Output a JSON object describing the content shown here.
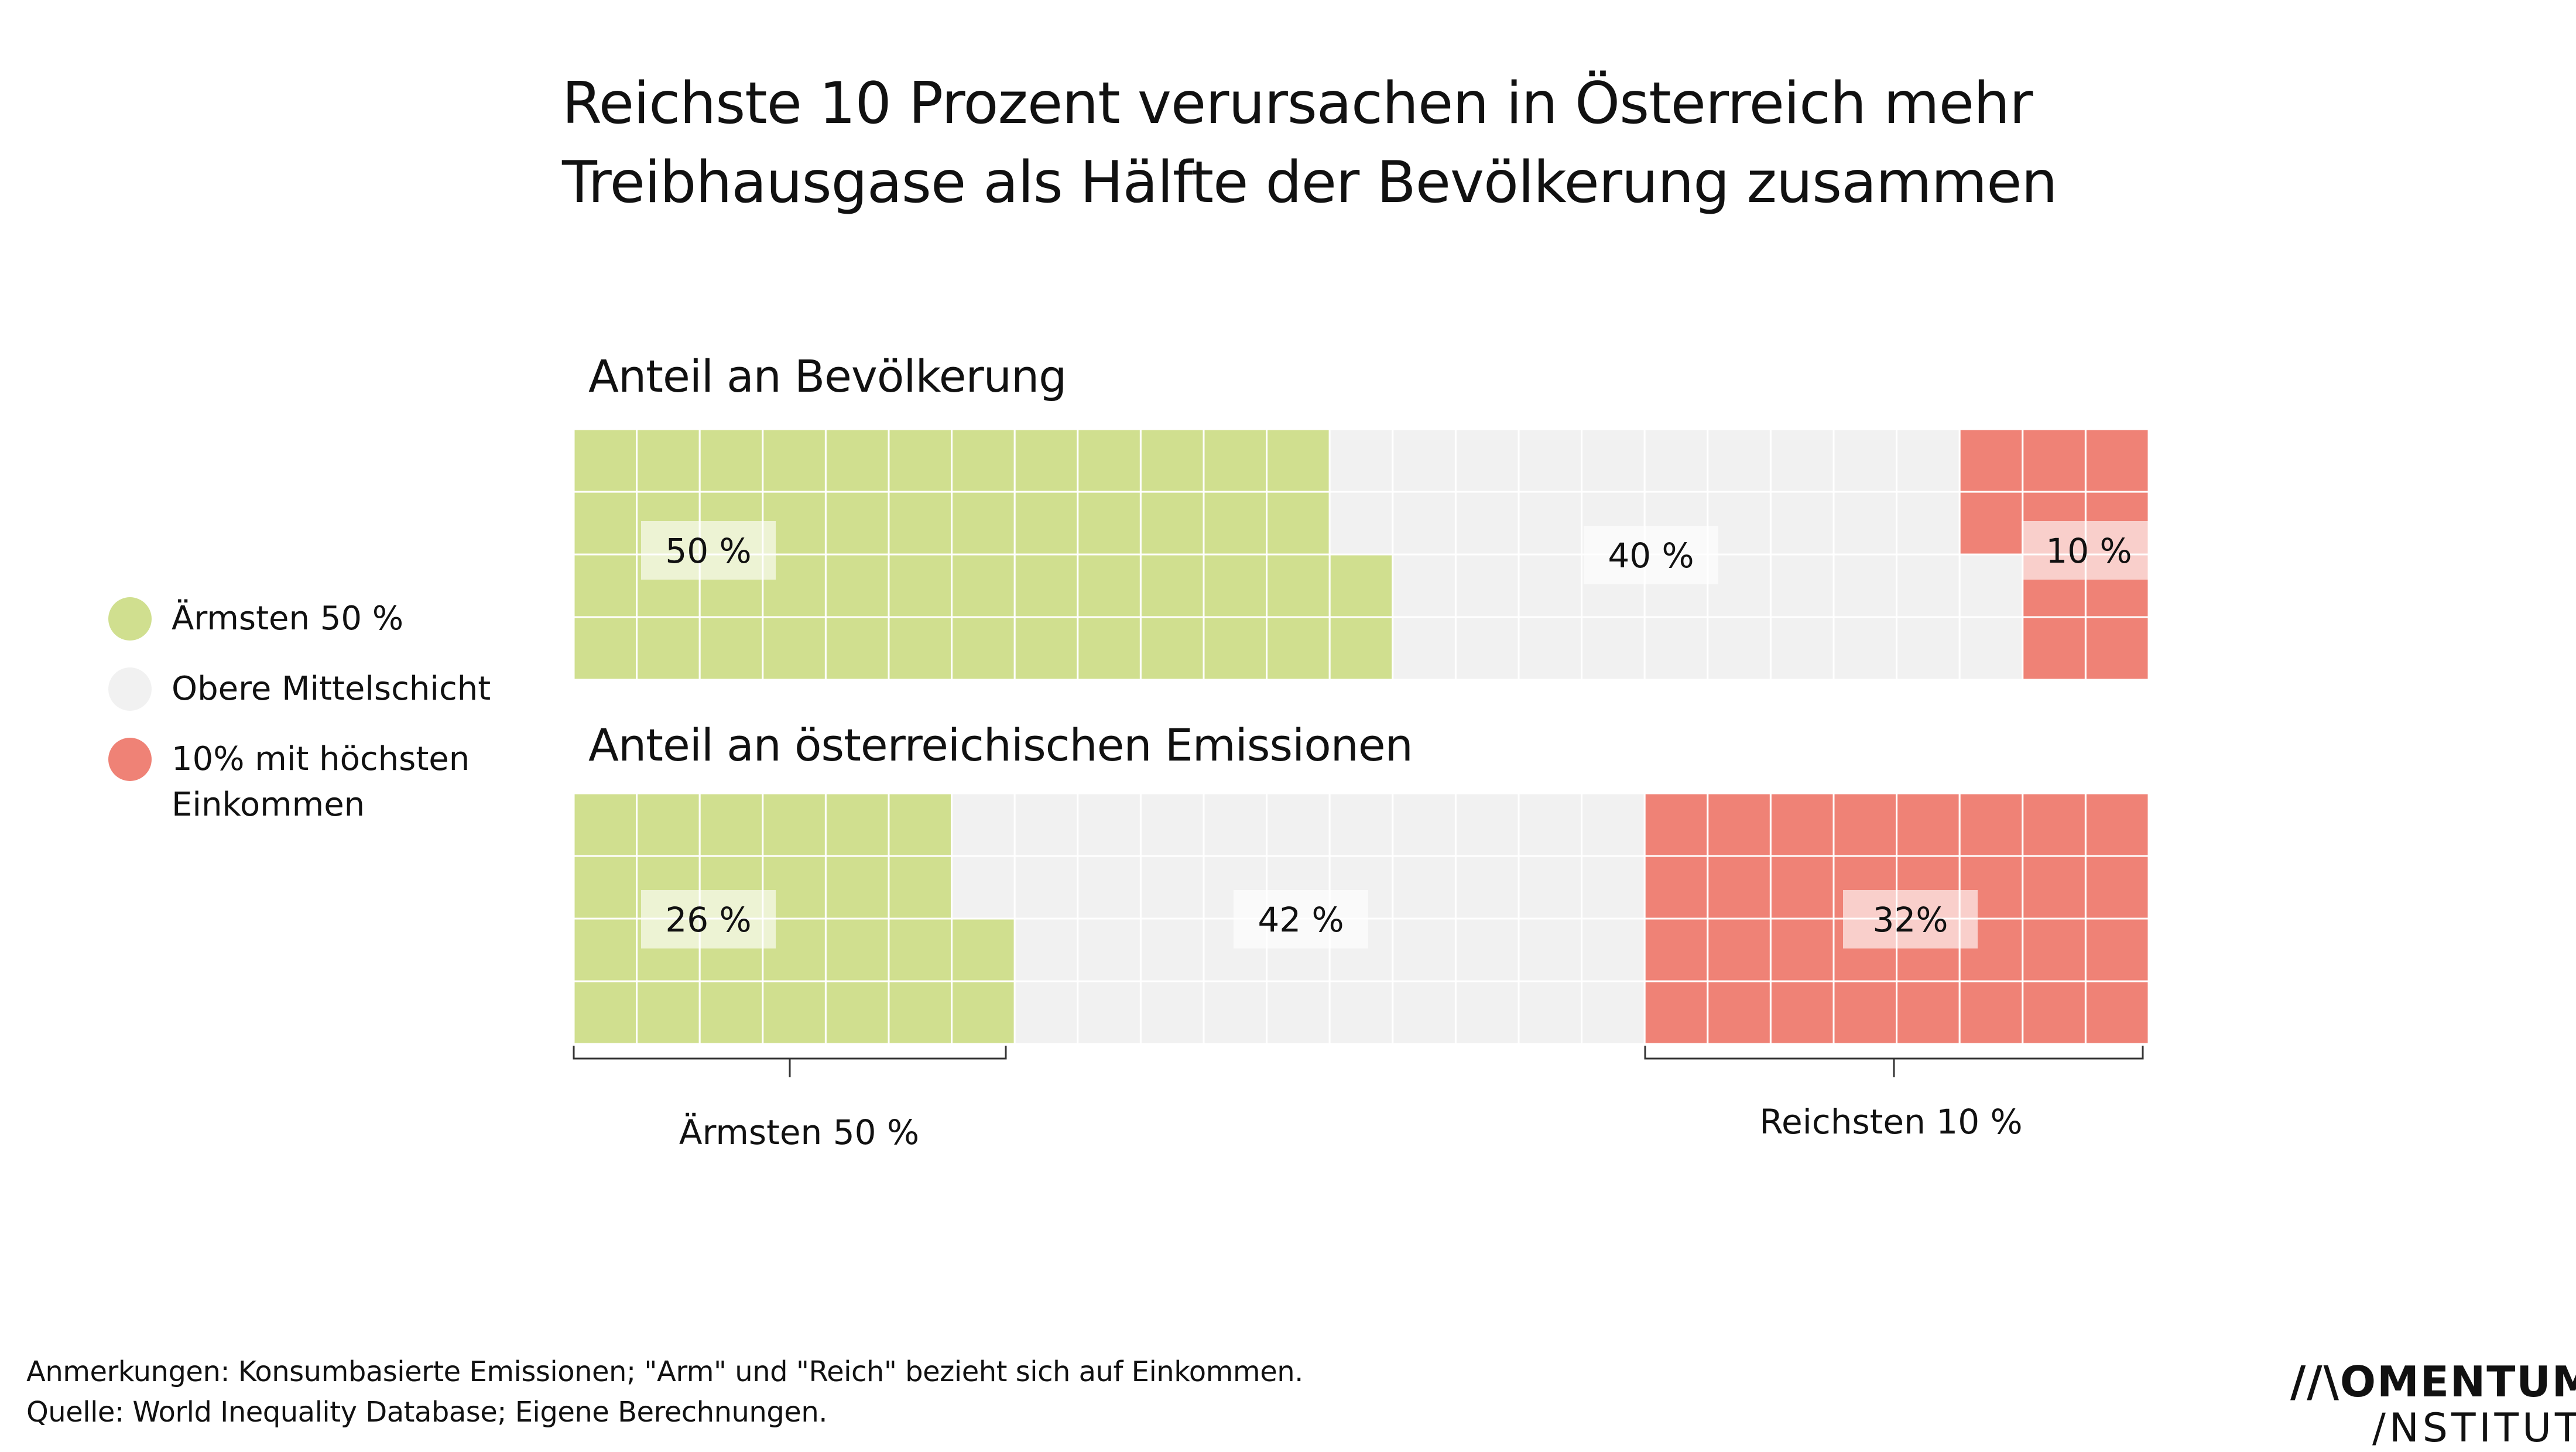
{
  "title": {
    "line1": "Reichste 10 Prozent verursachen in Österreich mehr",
    "line2": "Treibhausgase als Hälfte der Bevölkerung zusammen"
  },
  "colors": {
    "poorest": "#d0df8f",
    "middle": "#f1f1f1",
    "richest": "#ef8276",
    "grid": "#ffffff",
    "text": "#111111"
  },
  "legend": [
    {
      "label_lines": [
        "Ärmsten 50 %"
      ],
      "color": "#d0df8f"
    },
    {
      "label_lines": [
        "Obere Mittelschicht"
      ],
      "color": "#f1f1f1"
    },
    {
      "label_lines": [
        "10% mit höchsten",
        "Einkommen"
      ],
      "color": "#ef8276"
    }
  ],
  "chart_data": [
    {
      "type": "waffle",
      "title": "Anteil an Bevölkerung",
      "grid": {
        "columns": 25,
        "rows": 4
      },
      "series": [
        {
          "name": "Ärmsten 50 %",
          "value": 50,
          "label": "50 %"
        },
        {
          "name": "Obere Mittelschicht",
          "value": 40,
          "label": "40 %"
        },
        {
          "name": "10% mit höchsten Einkommen",
          "value": 10,
          "label": "10 %"
        }
      ]
    },
    {
      "type": "waffle",
      "title": "Anteil an österreichischen Emissionen",
      "grid": {
        "columns": 25,
        "rows": 4
      },
      "series": [
        {
          "name": "Ärmsten 50 %",
          "value": 26,
          "label": "26 %"
        },
        {
          "name": "Obere Mittelschicht",
          "value": 42,
          "label": "42 %"
        },
        {
          "name": "10% mit höchsten Einkommen",
          "value": 32,
          "label": "32%"
        }
      ]
    }
  ],
  "brackets": {
    "left": "Ärmsten 50 %",
    "right": "Reichsten 10 %"
  },
  "footnotes": {
    "note": "Anmerkungen: Konsumbasierte Emissionen; \"Arm\" und \"Reich\" bezieht sich auf Einkommen.",
    "source": "Quelle: World Inequality Database; Eigene Berechnungen."
  },
  "logo": {
    "main": "//\\OMENTUM",
    "sub": "/NSTITUT"
  }
}
